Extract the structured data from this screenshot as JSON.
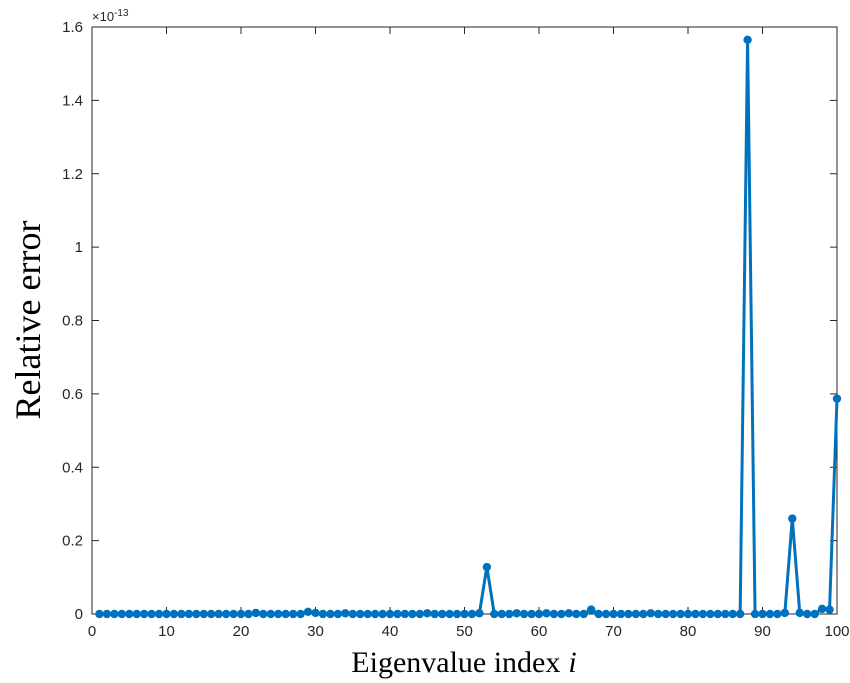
{
  "chart_data": {
    "type": "line",
    "title": "",
    "xlabel": "Eigenvalue index",
    "xlabel_var": "i",
    "ylabel": "Relative error",
    "y_exponent_base": "×10",
    "y_exponent_power": "-13",
    "xlim": [
      0,
      100
    ],
    "ylim": [
      0,
      1.6
    ],
    "xticks": [
      "0",
      "10",
      "20",
      "30",
      "40",
      "50",
      "60",
      "70",
      "80",
      "90",
      "100"
    ],
    "yticks": [
      "0",
      "0.2",
      "0.4",
      "0.6",
      "0.8",
      "1",
      "1.2",
      "1.4",
      "1.6"
    ],
    "grid": false,
    "marker": "circle",
    "series": [
      {
        "color": "#0072BD",
        "x": [
          1,
          2,
          3,
          4,
          5,
          6,
          7,
          8,
          9,
          10,
          11,
          12,
          13,
          14,
          15,
          16,
          17,
          18,
          19,
          20,
          21,
          22,
          23,
          24,
          25,
          26,
          27,
          28,
          29,
          30,
          31,
          32,
          33,
          34,
          35,
          36,
          37,
          38,
          39,
          40,
          41,
          42,
          43,
          44,
          45,
          46,
          47,
          48,
          49,
          50,
          51,
          52,
          53,
          54,
          55,
          56,
          57,
          58,
          59,
          60,
          61,
          62,
          63,
          64,
          65,
          66,
          67,
          68,
          69,
          70,
          71,
          72,
          73,
          74,
          75,
          76,
          77,
          78,
          79,
          80,
          81,
          82,
          83,
          84,
          85,
          86,
          87,
          88,
          89,
          90,
          91,
          92,
          93,
          94,
          95,
          96,
          97,
          98,
          99,
          100
        ],
        "values": [
          0,
          0,
          0,
          0,
          0,
          0,
          0,
          0,
          0,
          0,
          0,
          0,
          0,
          0,
          0,
          0,
          0,
          0,
          0,
          0,
          0,
          0.003,
          0,
          0,
          0,
          0,
          0,
          0,
          0.006,
          0.003,
          0,
          0,
          0,
          0.002,
          0,
          0,
          0,
          0,
          0,
          0,
          0,
          0,
          0,
          0,
          0.002,
          0,
          0,
          0,
          0,
          0,
          0,
          0.002,
          0.128,
          0,
          0,
          0,
          0.002,
          0,
          0,
          0,
          0.002,
          0,
          0,
          0.002,
          0,
          0,
          0.012,
          0,
          0,
          0,
          0,
          0,
          0,
          0,
          0.002,
          0,
          0,
          0,
          0,
          0,
          0,
          0,
          0,
          0,
          0,
          0,
          0,
          1.565,
          0,
          0,
          0,
          0,
          0.003,
          0.26,
          0.003,
          0,
          0,
          0.014,
          0.012,
          0.587
        ]
      }
    ]
  }
}
